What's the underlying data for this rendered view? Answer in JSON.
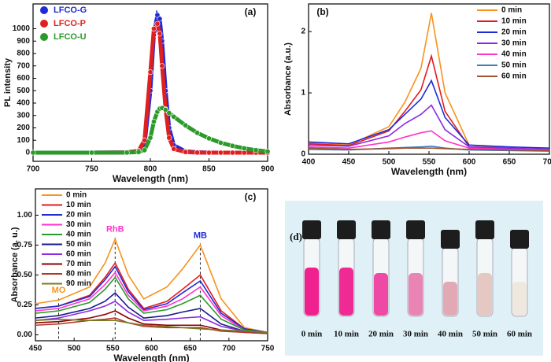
{
  "chart_data": [
    {
      "type": "line",
      "label": "(a)",
      "x_label": "Wavelength (nm)",
      "y_label": "PL intensity",
      "markers": true,
      "legend": "upper left",
      "x": [
        700,
        750,
        780,
        790,
        795,
        800,
        803,
        806,
        808,
        810,
        813,
        816,
        820,
        830,
        840,
        850,
        860,
        870,
        880,
        890,
        900
      ],
      "xlim": [
        700,
        900
      ],
      "xticks": [
        700,
        750,
        800,
        850,
        900
      ],
      "ylim": [
        -70,
        1200
      ],
      "yticks": [
        0,
        100,
        200,
        300,
        400,
        500,
        600,
        700,
        800,
        900,
        1000
      ],
      "series": [
        {
          "name": "LFCO-G",
          "color": "#1f2bd6",
          "values": [
            0,
            0,
            2,
            10,
            60,
            500,
            950,
            1110,
            1080,
            900,
            500,
            200,
            60,
            10,
            3,
            1,
            0,
            0,
            0,
            0,
            0
          ]
        },
        {
          "name": "LFCO-P",
          "color": "#e02020",
          "values": [
            0,
            0,
            2,
            15,
            100,
            650,
            1000,
            1040,
            960,
            700,
            350,
            120,
            30,
            5,
            1,
            0,
            0,
            0,
            0,
            0,
            0
          ]
        },
        {
          "name": "LFCO-U",
          "color": "#2a9a2a",
          "values": [
            0,
            0,
            1,
            5,
            20,
            120,
            250,
            330,
            355,
            360,
            345,
            320,
            290,
            220,
            160,
            115,
            80,
            55,
            35,
            20,
            10
          ]
        }
      ]
    },
    {
      "type": "line",
      "label": "(b)",
      "x_label": "Wavelength (nm)",
      "y_label": "Absorbance (a.u.)",
      "legend": "upper right",
      "x": [
        400,
        450,
        500,
        520,
        540,
        553,
        570,
        600,
        650,
        700
      ],
      "xlim": [
        400,
        700
      ],
      "xticks": [
        400,
        450,
        500,
        550,
        600,
        650,
        700
      ],
      "ylim": [
        0,
        2.45
      ],
      "yticks": [
        0,
        1,
        2
      ],
      "series": [
        {
          "name": "0 min",
          "color": "#f7931e",
          "values": [
            0.18,
            0.15,
            0.45,
            0.85,
            1.4,
            2.3,
            1.0,
            0.15,
            0.1,
            0.08
          ]
        },
        {
          "name": "10 min",
          "color": "#e41a1c",
          "values": [
            0.17,
            0.14,
            0.38,
            0.7,
            1.05,
            1.6,
            0.7,
            0.12,
            0.09,
            0.07
          ]
        },
        {
          "name": "20 min",
          "color": "#1f2bd6",
          "values": [
            0.2,
            0.17,
            0.4,
            0.65,
            0.9,
            1.2,
            0.6,
            0.15,
            0.12,
            0.1
          ]
        },
        {
          "name": "30 min",
          "color": "#8a2be2",
          "values": [
            0.15,
            0.13,
            0.3,
            0.5,
            0.65,
            0.8,
            0.4,
            0.12,
            0.1,
            0.08
          ]
        },
        {
          "name": "40 min",
          "color": "#ff33cc",
          "values": [
            0.12,
            0.1,
            0.2,
            0.28,
            0.35,
            0.38,
            0.22,
            0.1,
            0.08,
            0.07
          ]
        },
        {
          "name": "50 min",
          "color": "#3b7bbf",
          "values": [
            0.08,
            0.07,
            0.1,
            0.11,
            0.12,
            0.13,
            0.1,
            0.07,
            0.06,
            0.05
          ]
        },
        {
          "name": "60 min",
          "color": "#a0522d",
          "values": [
            0.1,
            0.08,
            0.09,
            0.1,
            0.1,
            0.1,
            0.09,
            0.08,
            0.07,
            0.06
          ]
        }
      ]
    },
    {
      "type": "line",
      "label": "(c)",
      "x_label": "Wavelength (nm)",
      "y_label": "Absorbance (a. u.)",
      "legend": "upper left",
      "x": [
        450,
        480,
        520,
        540,
        553,
        570,
        590,
        620,
        640,
        663,
        690,
        720,
        750
      ],
      "xlim": [
        450,
        750
      ],
      "xticks": [
        450,
        500,
        550,
        600,
        650,
        700,
        750
      ],
      "ylim": [
        -0.05,
        1.22
      ],
      "yticks": [
        {
          "value": 0,
          "label": "0.00"
        },
        {
          "value": 0.25,
          "label": "0.25"
        },
        {
          "value": 0.5,
          "label": "0.50"
        },
        {
          "value": 0.75,
          "label": "0.75"
        },
        {
          "value": 1,
          "label": "1.00"
        }
      ],
      "annotations": [
        {
          "text": "MO",
          "x": 480,
          "color": "#f7931e"
        },
        {
          "text": "RhB",
          "x": 553,
          "color": "#ff33cc"
        },
        {
          "text": "MB",
          "x": 663,
          "color": "#1f2bd6"
        }
      ],
      "series": [
        {
          "name": "0 min",
          "color": "#f7931e",
          "values": [
            0.26,
            0.29,
            0.4,
            0.6,
            0.8,
            0.5,
            0.3,
            0.4,
            0.55,
            0.75,
            0.3,
            0.06,
            0.02
          ]
        },
        {
          "name": "10 min",
          "color": "#e41a1c",
          "values": [
            0.22,
            0.24,
            0.33,
            0.48,
            0.6,
            0.38,
            0.22,
            0.28,
            0.38,
            0.5,
            0.2,
            0.05,
            0.02
          ]
        },
        {
          "name": "20 min",
          "color": "#1f2bd6",
          "values": [
            0.22,
            0.24,
            0.32,
            0.46,
            0.57,
            0.36,
            0.21,
            0.26,
            0.35,
            0.45,
            0.18,
            0.05,
            0.02
          ]
        },
        {
          "name": "30 min",
          "color": "#ff33cc",
          "values": [
            0.2,
            0.22,
            0.3,
            0.42,
            0.52,
            0.33,
            0.2,
            0.24,
            0.3,
            0.4,
            0.16,
            0.04,
            0.02
          ]
        },
        {
          "name": "40 min",
          "color": "#2a9a2a",
          "values": [
            0.18,
            0.2,
            0.27,
            0.38,
            0.48,
            0.3,
            0.18,
            0.21,
            0.26,
            0.33,
            0.13,
            0.04,
            0.02
          ]
        },
        {
          "name": "50 min",
          "color": "#1a1a8c",
          "values": [
            0.14,
            0.16,
            0.22,
            0.28,
            0.35,
            0.23,
            0.14,
            0.16,
            0.19,
            0.22,
            0.09,
            0.03,
            0.01
          ]
        },
        {
          "name": "60 min",
          "color": "#8a2be2",
          "values": [
            0.12,
            0.14,
            0.2,
            0.24,
            0.28,
            0.19,
            0.12,
            0.13,
            0.14,
            0.15,
            0.07,
            0.03,
            0.01
          ]
        },
        {
          "name": "70 min",
          "color": "#8b0000",
          "values": [
            0.1,
            0.11,
            0.14,
            0.17,
            0.2,
            0.14,
            0.09,
            0.08,
            0.08,
            0.08,
            0.04,
            0.02,
            0.01
          ]
        },
        {
          "name": "80 min",
          "color": "#b03a2e",
          "values": [
            0.08,
            0.09,
            0.12,
            0.13,
            0.14,
            0.1,
            0.07,
            0.06,
            0.06,
            0.06,
            0.03,
            0.02,
            0.01
          ]
        },
        {
          "name": "90 min",
          "color": "#7a7a20",
          "values": [
            0.12,
            0.13,
            0.12,
            0.12,
            0.12,
            0.1,
            0.08,
            0.07,
            0.06,
            0.05,
            0.04,
            0.03,
            0.02
          ]
        }
      ]
    }
  ],
  "photo": {
    "label": "(d)",
    "vials": [
      "0 min",
      "10 min",
      "20 min",
      "30 min",
      "40 min",
      "50 min",
      "60 min"
    ]
  }
}
